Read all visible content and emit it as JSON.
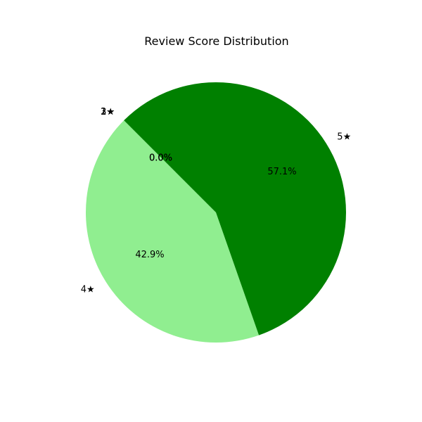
{
  "chart_data": {
    "type": "pie",
    "title": "Review Score Distribution",
    "start_angle_deg": 135,
    "direction": "counterclockwise",
    "slices": [
      {
        "label": "1★",
        "value": 0,
        "percent_label": "0.0%",
        "color": "#ff0000"
      },
      {
        "label": "2★",
        "value": 0,
        "percent_label": "0.0%",
        "color": "#ff7f0e"
      },
      {
        "label": "3★",
        "value": 0,
        "percent_label": "0.0%",
        "color": "#ffff00"
      },
      {
        "label": "4★",
        "value": 3,
        "percent_label": "42.9%",
        "color": "#90ee90"
      },
      {
        "label": "5★",
        "value": 4,
        "percent_label": "57.1%",
        "color": "#008000"
      }
    ]
  }
}
